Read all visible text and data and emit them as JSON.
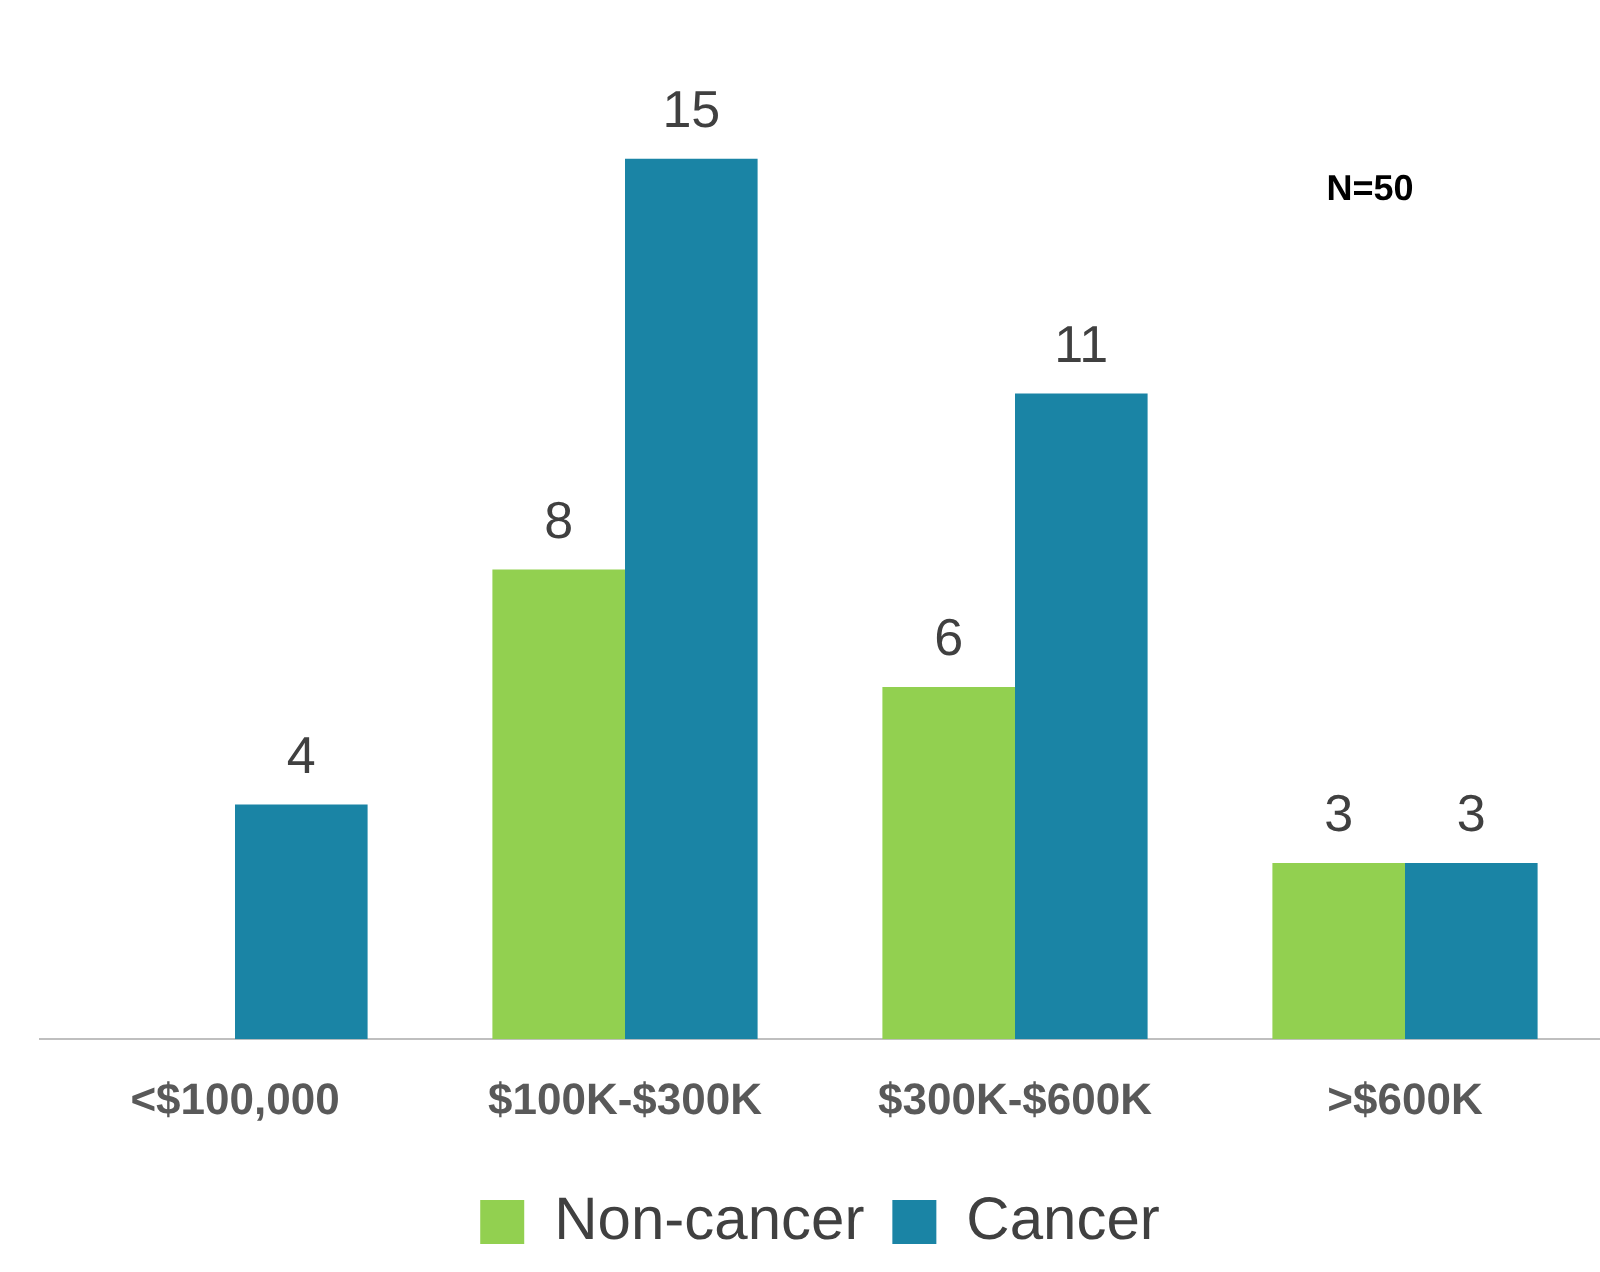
{
  "chart_data": {
    "type": "bar",
    "categories": [
      "<$100,000",
      "$100K-$300K",
      "$300K-$600K",
      ">$600K"
    ],
    "series": [
      {
        "name": "Non-cancer",
        "color": "#92d050",
        "values": [
          null,
          8,
          6,
          3
        ]
      },
      {
        "name": "Cancer",
        "color": "#1a84a5",
        "values": [
          4,
          15,
          11,
          3
        ]
      }
    ],
    "data_labels": true,
    "legend": "bottom",
    "grid": false,
    "tick_labels": "x",
    "annotations": [
      "N=50"
    ]
  }
}
